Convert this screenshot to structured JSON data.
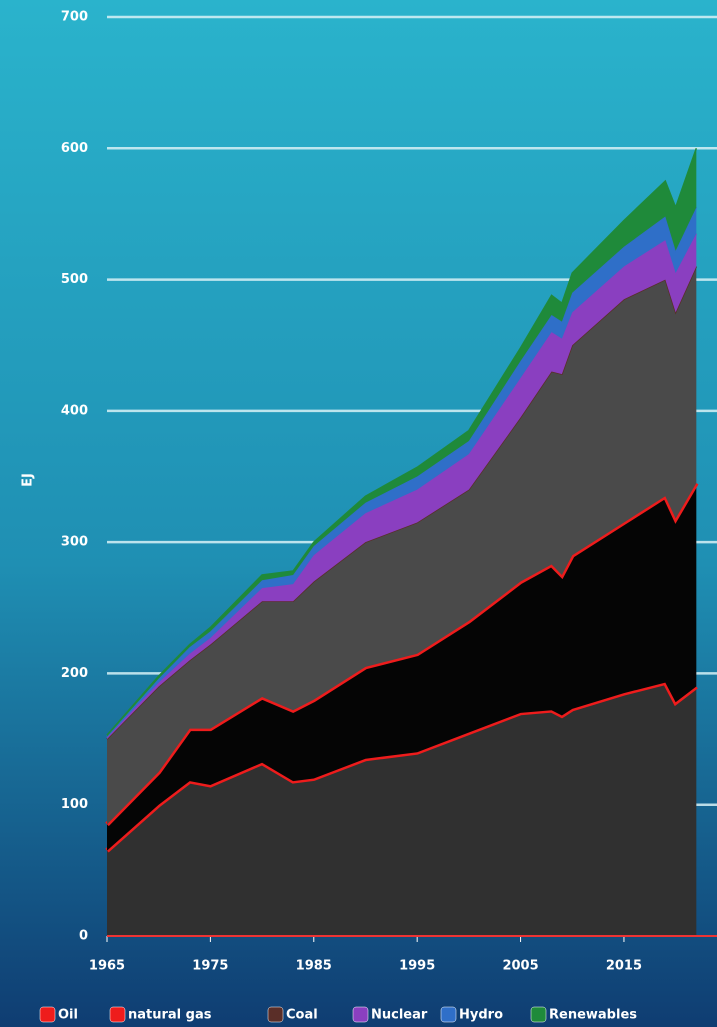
{
  "chart_data": {
    "type": "stacked-area",
    "y_label": "EJ",
    "x": [
      1965,
      1970,
      1973,
      1975,
      1980,
      1983,
      1985,
      1990,
      1995,
      2000,
      2005,
      2008,
      2009,
      2010,
      2015,
      2019,
      2020,
      2022
    ],
    "series": [
      {
        "name": "Oil",
        "color": "#ee1c1c",
        "values": [
          65,
          100,
          118,
          115,
          132,
          118,
          120,
          135,
          140,
          155,
          170,
          172,
          168,
          173,
          185,
          193,
          178,
          190
        ]
      },
      {
        "name": "natural gas",
        "color": "#ee1c1c",
        "values": [
          20,
          25,
          40,
          43,
          50,
          54,
          60,
          70,
          75,
          85,
          100,
          111,
          107,
          117,
          130,
          142,
          140,
          155
        ]
      },
      {
        "name": "Coal",
        "color": "#5a2e28",
        "values": [
          65,
          65,
          52,
          64,
          73,
          83,
          90,
          95,
          100,
          100,
          125,
          147,
          153,
          160,
          170,
          165,
          157,
          165
        ]
      },
      {
        "name": "Nuclear",
        "color": "#8a3fc0",
        "values": [
          1,
          3,
          5,
          5,
          10,
          13,
          20,
          22,
          25,
          27,
          30,
          30,
          27,
          25,
          25,
          30,
          30,
          25
        ]
      },
      {
        "name": "Hydro",
        "color": "#2f6fc8",
        "values": [
          1,
          3,
          5,
          5,
          6,
          7,
          7,
          8,
          10,
          10,
          13,
          13,
          13,
          15,
          15,
          18,
          17,
          20
        ]
      },
      {
        "name": "Renewables",
        "color": "#1f8a3a",
        "values": [
          1,
          2,
          2,
          3,
          4,
          3,
          3,
          5,
          7,
          8,
          10,
          15,
          14,
          15,
          20,
          27,
          33,
          45
        ]
      }
    ],
    "xlim": [
      1965,
      2024
    ],
    "xticks": [
      1965,
      1975,
      1985,
      1995,
      2005,
      2015
    ],
    "ylim": [
      0,
      700
    ],
    "yticks": [
      0,
      100,
      200,
      300,
      400,
      500,
      600,
      700
    ],
    "grid": true
  }
}
